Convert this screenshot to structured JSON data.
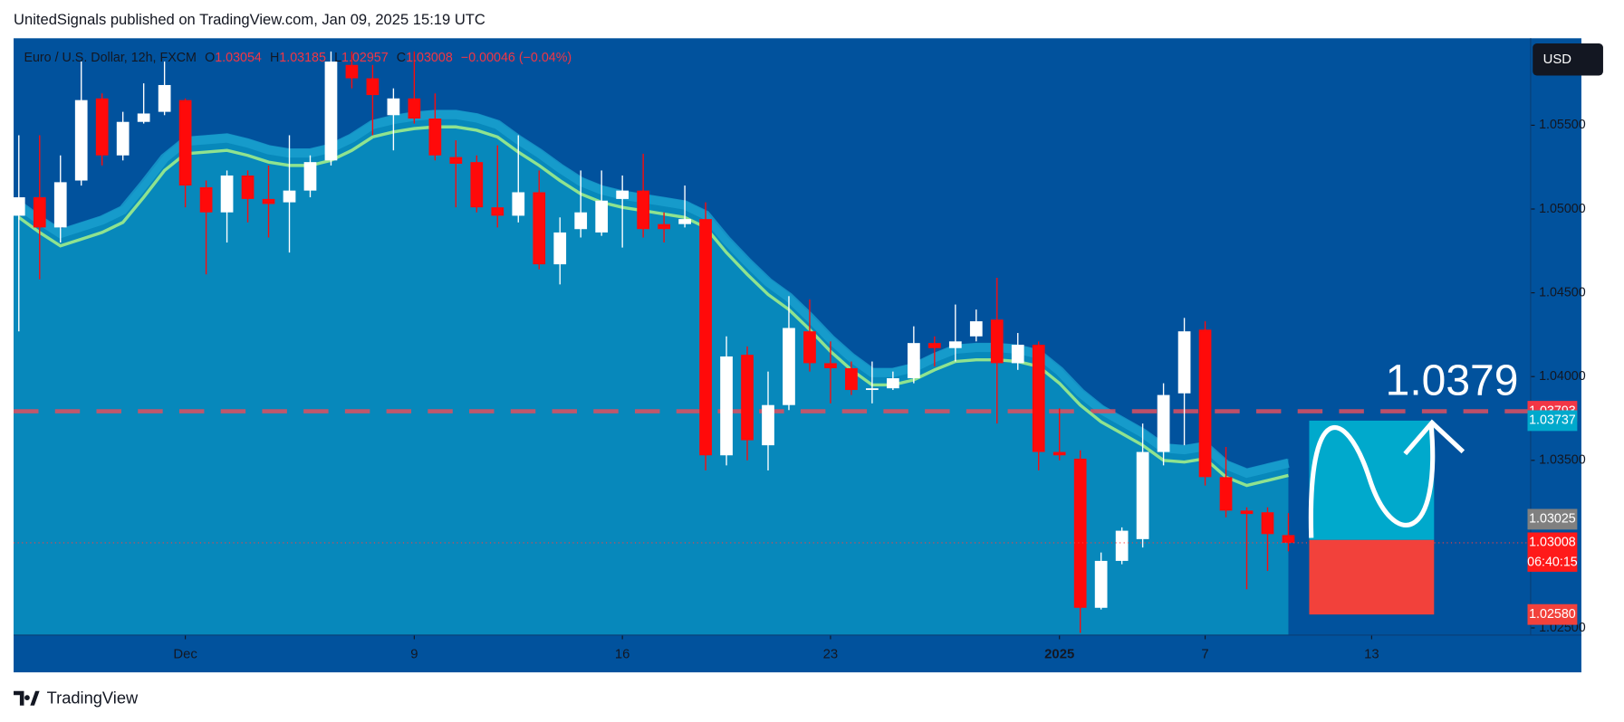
{
  "header": {
    "credit": "UnitedSignals published on TradingView.com, Jan 09, 2025 15:19 UTC",
    "logo": "TradingView"
  },
  "chart_data": {
    "type": "candlestick",
    "symbol": "Euro / U.S. Dollar, 12h, FXCM",
    "change": "−0.00046 (−0.04%)",
    "currency": "USD",
    "x": [
      0,
      1,
      2,
      3,
      4,
      5,
      6,
      7,
      8,
      9,
      10,
      11,
      12,
      13,
      14,
      15,
      16,
      17,
      18,
      19,
      20,
      21,
      22,
      23,
      24,
      25,
      26,
      27,
      28,
      29,
      30,
      31,
      32,
      33,
      34,
      35,
      36,
      37,
      38,
      39,
      40,
      41,
      42,
      43,
      44,
      45,
      46,
      47,
      48,
      49,
      50,
      51,
      52,
      53,
      54,
      55,
      56,
      57,
      58,
      59,
      60,
      61
    ],
    "open": [
      1.0496,
      1.0507,
      1.0489,
      1.0517,
      1.0566,
      1.0532,
      1.0552,
      1.0558,
      1.0565,
      1.0513,
      1.0498,
      1.052,
      1.0506,
      1.0504,
      1.0511,
      1.0529,
      1.0586,
      1.0578,
      1.0556,
      1.0566,
      1.0554,
      1.0531,
      1.0528,
      1.0501,
      1.0496,
      1.051,
      1.0467,
      1.0488,
      1.0486,
      1.0506,
      1.0511,
      1.0491,
      1.0491,
      1.0494,
      1.0353,
      1.0413,
      1.0359,
      1.0383,
      1.0427,
      1.0408,
      1.0405,
      1.0392,
      1.0393,
      1.0399,
      1.042,
      1.0417,
      1.0424,
      1.0434,
      1.0408,
      1.0419,
      1.0355,
      1.0351,
      1.0262,
      1.029,
      1.0303,
      1.0355,
      1.039,
      1.0428,
      1.034,
      1.032,
      1.0319,
      1.03054
    ],
    "high": [
      1.0544,
      1.0544,
      1.0532,
      1.0588,
      1.0569,
      1.0558,
      1.0575,
      1.0588,
      1.0566,
      1.0517,
      1.0523,
      1.0523,
      1.0526,
      1.0544,
      1.0532,
      1.0594,
      1.0594,
      1.0586,
      1.0572,
      1.0594,
      1.0569,
      1.0541,
      1.0532,
      1.0538,
      1.0544,
      1.0523,
      1.0495,
      1.0523,
      1.0523,
      1.052,
      1.0533,
      1.0498,
      1.0514,
      1.0504,
      1.0424,
      1.0418,
      1.0403,
      1.0448,
      1.0446,
      1.0421,
      1.0409,
      1.0409,
      1.0403,
      1.043,
      1.0424,
      1.0443,
      1.044,
      1.0459,
      1.0426,
      1.0421,
      1.0381,
      1.0356,
      1.0295,
      1.031,
      1.0372,
      1.0396,
      1.0435,
      1.0433,
      1.0358,
      1.0322,
      1.0322,
      1.03185
    ],
    "low": [
      1.0427,
      1.0458,
      1.048,
      1.0514,
      1.0526,
      1.0529,
      1.0551,
      1.0556,
      1.0501,
      1.0461,
      1.048,
      1.0492,
      1.0483,
      1.0474,
      1.0507,
      1.0526,
      1.0572,
      1.0544,
      1.0535,
      1.0551,
      1.0529,
      1.0501,
      1.0498,
      1.0489,
      1.0492,
      1.0464,
      1.0455,
      1.0483,
      1.0484,
      1.0477,
      1.0483,
      1.048,
      1.0489,
      1.0344,
      1.0347,
      1.035,
      1.0344,
      1.038,
      1.0403,
      1.0384,
      1.0389,
      1.0384,
      1.0392,
      1.0396,
      1.0406,
      1.0409,
      1.0421,
      1.0372,
      1.0404,
      1.0344,
      1.035,
      1.0247,
      1.0261,
      1.0288,
      1.0298,
      1.0347,
      1.0359,
      1.0335,
      1.0316,
      1.0273,
      1.0284,
      1.02957
    ],
    "close": [
      1.0507,
      1.0489,
      1.0516,
      1.0565,
      1.0532,
      1.0552,
      1.0557,
      1.0574,
      1.0514,
      1.0498,
      1.052,
      1.0506,
      1.0503,
      1.0511,
      1.0528,
      1.0588,
      1.0578,
      1.0568,
      1.0566,
      1.0554,
      1.0532,
      1.0527,
      1.0501,
      1.0496,
      1.051,
      1.0467,
      1.0486,
      1.0498,
      1.0505,
      1.0511,
      1.0488,
      1.0488,
      1.0494,
      1.0353,
      1.0412,
      1.0362,
      1.0383,
      1.0429,
      1.0408,
      1.0405,
      1.0392,
      1.0393,
      1.0399,
      1.042,
      1.0417,
      1.0421,
      1.0433,
      1.0408,
      1.0419,
      1.0355,
      1.0353,
      1.0262,
      1.029,
      1.0308,
      1.0355,
      1.0389,
      1.0427,
      1.034,
      1.032,
      1.0318,
      1.0306,
      1.03008
    ],
    "up_color": "#ffffff",
    "down_color": "#ff0a0a",
    "ma": {
      "color": "#8fe38f",
      "values": [
        1.0495,
        1.0486,
        1.0478,
        1.0482,
        1.0486,
        1.0492,
        1.0507,
        1.0523,
        1.0533,
        1.0534,
        1.0535,
        1.0532,
        1.0528,
        1.0526,
        1.0526,
        1.0529,
        1.0535,
        1.0543,
        1.0546,
        1.0548,
        1.0549,
        1.0549,
        1.0547,
        1.0543,
        1.0534,
        1.0526,
        1.0517,
        1.0509,
        1.0504,
        1.0501,
        1.0499,
        1.0497,
        1.0495,
        1.0489,
        1.0474,
        1.0461,
        1.0449,
        1.044,
        1.0428,
        1.0415,
        1.0404,
        1.0395,
        1.0395,
        1.0398,
        1.0404,
        1.0409,
        1.041,
        1.041,
        1.0409,
        1.0406,
        1.0396,
        1.0383,
        1.0373,
        1.0366,
        1.0359,
        1.035,
        1.0349,
        1.0351,
        1.034,
        1.0335,
        1.0338,
        1.0341
      ]
    },
    "level": 1.03793,
    "level_label": "1.0379",
    "last_price": 1.03008,
    "countdown": "06:40:15",
    "position": {
      "start": 62,
      "end": 68,
      "entry": 1.03025,
      "target": 1.03737,
      "stop": {
        "value": 1.0258,
        "label": "1.02580"
      }
    },
    "xlim": [
      -0.25,
      72.64
    ],
    "ylim": [
      1.02457,
      1.06019
    ],
    "xticks": [
      {
        "value": 8,
        "label": "Dec"
      },
      {
        "value": 19,
        "label": "9"
      },
      {
        "value": 29,
        "label": "16"
      },
      {
        "value": 39,
        "label": "23"
      },
      {
        "value": 50,
        "label": "2025"
      },
      {
        "value": 57,
        "label": "7"
      },
      {
        "value": 65,
        "label": "13"
      }
    ],
    "yticks": [
      {
        "value": 1.055,
        "label": "1.05500"
      },
      {
        "value": 1.05,
        "label": "1.05000"
      },
      {
        "value": 1.045,
        "label": "1.04500"
      },
      {
        "value": 1.04,
        "label": "1.04000"
      },
      {
        "value": 1.035,
        "label": "1.03500"
      },
      {
        "value": 1.025,
        "label": "1.02500"
      }
    ]
  }
}
